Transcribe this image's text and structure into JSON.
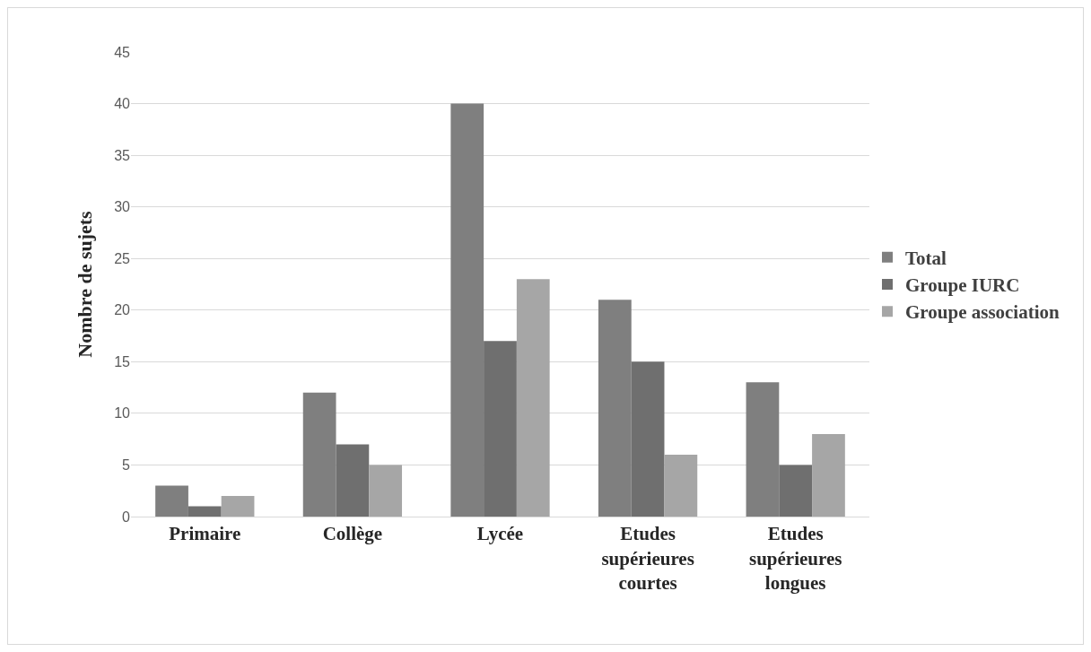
{
  "chart_data": {
    "type": "bar",
    "ylabel": "Nombre de sujets",
    "categories": [
      "Primaire",
      "Collège",
      "Lycée",
      "Etudes supérieures courtes",
      "Etudes supérieures longues"
    ],
    "series": [
      {
        "name": "Total",
        "color": "#7f7f7f",
        "values": [
          3,
          12,
          40,
          21,
          13
        ]
      },
      {
        "name": "Groupe IURC",
        "color": "#6f6f6f",
        "values": [
          1,
          7,
          17,
          15,
          5
        ]
      },
      {
        "name": "Groupe association",
        "color": "#a6a6a6",
        "values": [
          2,
          5,
          23,
          6,
          8
        ]
      }
    ],
    "ylim": [
      0,
      45
    ],
    "yticks": [
      0,
      5,
      10,
      15,
      20,
      25,
      30,
      35,
      40,
      45
    ],
    "grid": "y",
    "legend": "right"
  }
}
